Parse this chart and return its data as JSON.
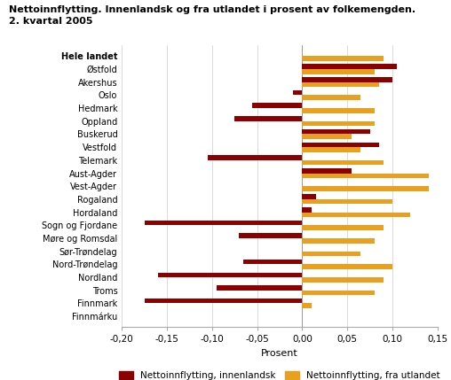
{
  "title_line1": "Nettoinnflytting. Innenlandsk og fra utlandet i prosent av folkemengden.",
  "title_line2": "2. kvartal 2005",
  "categories": [
    "Hele landet",
    "Østfold",
    "Akershus",
    "Oslo",
    "Hedmark",
    "Oppland",
    "Buskerud",
    "Vestfold",
    "Telemark",
    "Aust-Agder",
    "Vest-Agder",
    "Rogaland",
    "Hordaland",
    "Sogn og Fjordane",
    "Møre og Romsdal",
    "Sør-Trøndelag",
    "Nord-Trøndelag",
    "Nordland",
    "Troms",
    "Finnmark",
    "Finnmárku"
  ],
  "innenlandsk": [
    0.0,
    0.105,
    0.1,
    -0.01,
    -0.055,
    -0.075,
    0.075,
    0.085,
    -0.105,
    0.055,
    0.0,
    0.015,
    0.01,
    -0.175,
    -0.07,
    0.0,
    -0.065,
    -0.16,
    -0.095,
    -0.175,
    0.0
  ],
  "fra_utlandet": [
    0.09,
    0.08,
    0.085,
    0.065,
    0.08,
    0.08,
    0.055,
    0.065,
    0.09,
    0.14,
    0.14,
    0.1,
    0.12,
    0.09,
    0.08,
    0.065,
    0.1,
    0.09,
    0.08,
    0.01,
    0.0
  ],
  "color_innenlandsk": "#8B0000",
  "color_fra_utlandet": "#E8A020",
  "xlabel": "Prosent",
  "xlim": [
    -0.2,
    0.15
  ],
  "xticks": [
    -0.2,
    -0.15,
    -0.1,
    -0.05,
    0.0,
    0.05,
    0.1,
    0.15
  ],
  "xtick_labels": [
    "-0,20",
    "-0,15",
    "-0,10",
    "-0,05",
    "0,00",
    "0,05",
    "0,10",
    "0,15"
  ],
  "legend_innenlandsk": "Nettoinnflytting, innenlandsk",
  "legend_fra_utlandet": "Nettoinnflytting, fra utlandet",
  "background_color": "#ffffff",
  "grid_color": "#cccccc"
}
